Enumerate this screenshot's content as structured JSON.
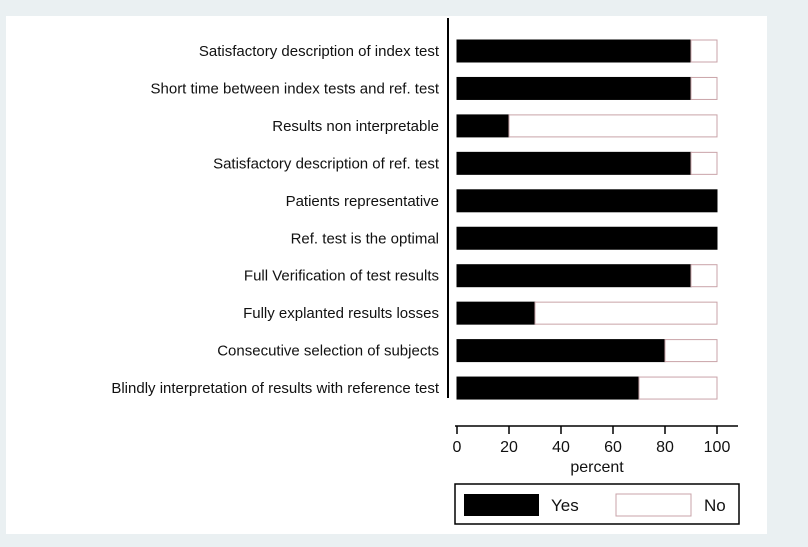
{
  "chart_data": {
    "type": "bar",
    "orientation": "horizontal",
    "stacked": true,
    "categories": [
      "Satisfactory description of index test",
      "Short time between index tests and ref. test",
      "Results non interpretable",
      "Satisfactory description of ref. test",
      "Patients representative",
      "Ref. test is the optimal",
      "Full Verification of test results",
      "Fully explanted results losses",
      "Consecutive selection of subjects",
      "Blindly interpretation of results with reference test"
    ],
    "series": [
      {
        "name": "Yes",
        "color": "#000000",
        "values": [
          90,
          90,
          20,
          90,
          100,
          100,
          90,
          30,
          80,
          70
        ]
      },
      {
        "name": "No",
        "color": "#ffffff",
        "values": [
          10,
          10,
          80,
          10,
          0,
          0,
          10,
          70,
          20,
          30
        ]
      }
    ],
    "xlabel": "percent",
    "xlim": [
      0,
      100
    ],
    "xticks": [
      0,
      20,
      40,
      60,
      80,
      100
    ],
    "grid": false,
    "legend_position": "bottom"
  }
}
